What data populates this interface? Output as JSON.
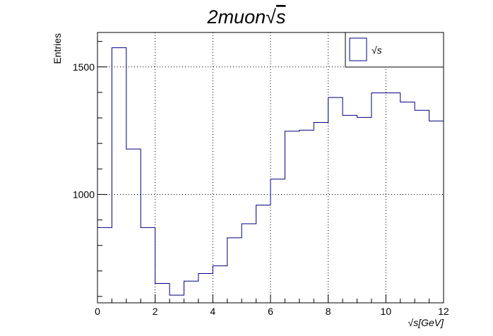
{
  "chart_data": {
    "type": "histogram",
    "title": "2muon√s",
    "title_parts": {
      "main": "2muon",
      "radical": "√",
      "radicand": "s"
    },
    "xlabel": "√s[GeV]",
    "xlabel_parts": {
      "radical": "√",
      "rest": "s[GeV]"
    },
    "ylabel": "Entries",
    "xlim": [
      0,
      12
    ],
    "ylim": [
      575,
      1635
    ],
    "x_ticks": [
      "0",
      "2",
      "4",
      "6",
      "8",
      "10",
      "12"
    ],
    "y_ticks": [
      "1000",
      "1500"
    ],
    "grid": true,
    "bin_edges": [
      0,
      0.5,
      1.0,
      1.5,
      2.0,
      2.5,
      3.0,
      3.5,
      4.0,
      4.5,
      5.0,
      5.5,
      6.0,
      6.5,
      7.0,
      7.5,
      8.0,
      8.5,
      9.0,
      9.5,
      10.0,
      10.5,
      11.0,
      11.5,
      12.0
    ],
    "series": [
      {
        "name": "√s",
        "color": "#000080",
        "values": [
          870,
          1575,
          1178,
          870,
          651,
          605,
          660,
          690,
          720,
          830,
          885,
          958,
          1060,
          1248,
          1252,
          1282,
          1380,
          1310,
          1302,
          1398,
          1398,
          1362,
          1330,
          1288
        ]
      }
    ],
    "legend": {
      "position": "top-right",
      "label": "√s"
    }
  }
}
